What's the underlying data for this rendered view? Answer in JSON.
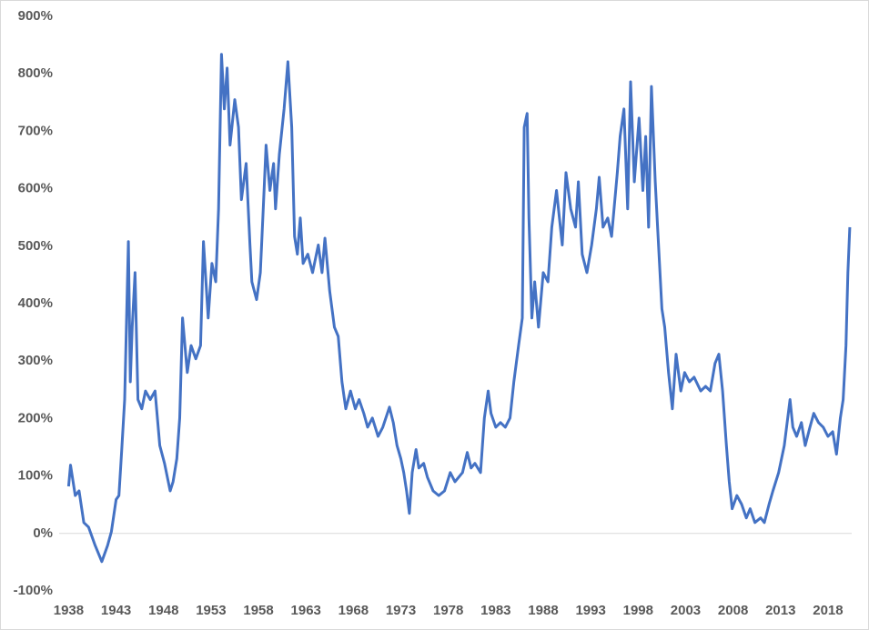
{
  "chart_data": {
    "type": "line",
    "xlim": [
      1937,
      2020.5
    ],
    "xticks": [
      1938,
      1943,
      1948,
      1953,
      1958,
      1963,
      1968,
      1973,
      1978,
      1983,
      1988,
      1993,
      1998,
      2003,
      2008,
      2013,
      2018
    ],
    "ylim": [
      -100,
      900
    ],
    "yticks": [
      {
        "value": -100,
        "label": "-100%"
      },
      {
        "value": 0,
        "label": "0%"
      },
      {
        "value": 100,
        "label": "100%"
      },
      {
        "value": 200,
        "label": "200%"
      },
      {
        "value": 300,
        "label": "300%"
      },
      {
        "value": 400,
        "label": "400%"
      },
      {
        "value": 500,
        "label": "500%"
      },
      {
        "value": 600,
        "label": "600%"
      },
      {
        "value": 700,
        "label": "700%"
      },
      {
        "value": 800,
        "label": "800%"
      },
      {
        "value": 900,
        "label": "900%"
      }
    ],
    "grid": false,
    "series": [
      {
        "color": "#4472c4",
        "x": [
          1938.0,
          1938.2,
          1938.7,
          1939.1,
          1939.6,
          1940.1,
          1940.8,
          1941.5,
          1942.1,
          1942.5,
          1943.0,
          1943.3,
          1943.6,
          1943.9,
          1944.3,
          1944.5,
          1944.7,
          1945.0,
          1945.3,
          1945.7,
          1946.1,
          1946.6,
          1947.1,
          1947.6,
          1948.1,
          1948.7,
          1949.0,
          1949.4,
          1949.7,
          1950.0,
          1950.5,
          1950.9,
          1951.4,
          1951.9,
          1952.2,
          1952.7,
          1953.1,
          1953.5,
          1953.8,
          1954.1,
          1954.4,
          1954.7,
          1955.0,
          1955.5,
          1955.9,
          1956.2,
          1956.7,
          1957.1,
          1957.3,
          1957.8,
          1958.2,
          1958.5,
          1958.8,
          1959.2,
          1959.6,
          1959.8,
          1960.2,
          1960.7,
          1961.1,
          1961.5,
          1961.8,
          1962.1,
          1962.4,
          1962.7,
          1963.2,
          1963.7,
          1964.3,
          1964.7,
          1965.0,
          1965.5,
          1966.0,
          1966.4,
          1966.8,
          1967.2,
          1967.7,
          1968.2,
          1968.6,
          1969.1,
          1969.5,
          1970.0,
          1970.6,
          1971.1,
          1971.8,
          1972.2,
          1972.6,
          1973.0,
          1973.3,
          1973.6,
          1973.9,
          1974.2,
          1974.6,
          1974.9,
          1975.4,
          1975.8,
          1976.4,
          1977.0,
          1977.6,
          1978.2,
          1978.7,
          1979.5,
          1980.0,
          1980.4,
          1980.8,
          1981.4,
          1981.8,
          1982.2,
          1982.5,
          1983.0,
          1983.5,
          1984.0,
          1984.5,
          1984.9,
          1985.4,
          1985.8,
          1986.0,
          1986.3,
          1986.5,
          1986.8,
          1987.1,
          1987.5,
          1988.0,
          1988.5,
          1988.9,
          1989.4,
          1990.0,
          1990.4,
          1990.9,
          1991.4,
          1991.7,
          1992.1,
          1992.6,
          1993.1,
          1993.6,
          1993.9,
          1994.3,
          1994.8,
          1995.2,
          1995.8,
          1996.1,
          1996.5,
          1996.9,
          1997.2,
          1997.6,
          1998.1,
          1998.5,
          1998.8,
          1999.1,
          1999.4,
          1999.8,
          2000.1,
          2000.5,
          2000.8,
          2001.2,
          2001.6,
          2002.0,
          2002.5,
          2002.9,
          2003.4,
          2003.9,
          2004.6,
          2005.1,
          2005.6,
          2006.1,
          2006.5,
          2006.9,
          2007.3,
          2007.6,
          2007.9,
          2008.4,
          2008.9,
          2009.4,
          2009.8,
          2010.3,
          2010.9,
          2011.3,
          2011.8,
          2012.2,
          2012.8,
          2013.4,
          2014.0,
          2014.3,
          2014.7,
          2015.2,
          2015.6,
          2016.1,
          2016.5,
          2017.0,
          2017.5,
          2018.0,
          2018.5,
          2018.9,
          2019.3,
          2019.6,
          2019.9,
          2020.1,
          2020.3
        ],
        "values": [
          82,
          119,
          66,
          74,
          19,
          11,
          -21,
          -49,
          -21,
          3,
          59,
          66,
          146,
          233,
          508,
          264,
          359,
          454,
          233,
          217,
          248,
          233,
          248,
          153,
          122,
          74,
          90,
          130,
          201,
          375,
          280,
          327,
          304,
          327,
          508,
          375,
          470,
          438,
          565,
          834,
          739,
          810,
          676,
          755,
          707,
          581,
          644,
          502,
          438,
          407,
          454,
          565,
          676,
          597,
          644,
          565,
          660,
          739,
          821,
          707,
          517,
          486,
          549,
          470,
          486,
          454,
          502,
          454,
          514,
          422,
          359,
          343,
          264,
          217,
          248,
          217,
          233,
          209,
          185,
          201,
          169,
          185,
          220,
          193,
          153,
          130,
          106,
          74,
          35,
          106,
          146,
          114,
          122,
          98,
          74,
          66,
          74,
          106,
          90,
          106,
          141,
          114,
          122,
          106,
          201,
          248,
          209,
          185,
          193,
          185,
          201,
          264,
          327,
          375,
          707,
          731,
          549,
          375,
          438,
          359,
          454,
          438,
          533,
          597,
          502,
          628,
          565,
          533,
          612,
          486,
          454,
          502,
          565,
          620,
          533,
          549,
          517,
          628,
          691,
          739,
          565,
          786,
          612,
          723,
          597,
          691,
          533,
          778,
          612,
          517,
          391,
          359,
          280,
          217,
          312,
          248,
          280,
          264,
          272,
          248,
          256,
          248,
          296,
          312,
          248,
          153,
          90,
          43,
          66,
          51,
          27,
          43,
          19,
          27,
          19,
          51,
          74,
          106,
          153,
          233,
          185,
          169,
          193,
          153,
          185,
          209,
          193,
          185,
          169,
          177,
          138,
          201,
          233,
          327,
          454,
          533
        ]
      }
    ]
  }
}
